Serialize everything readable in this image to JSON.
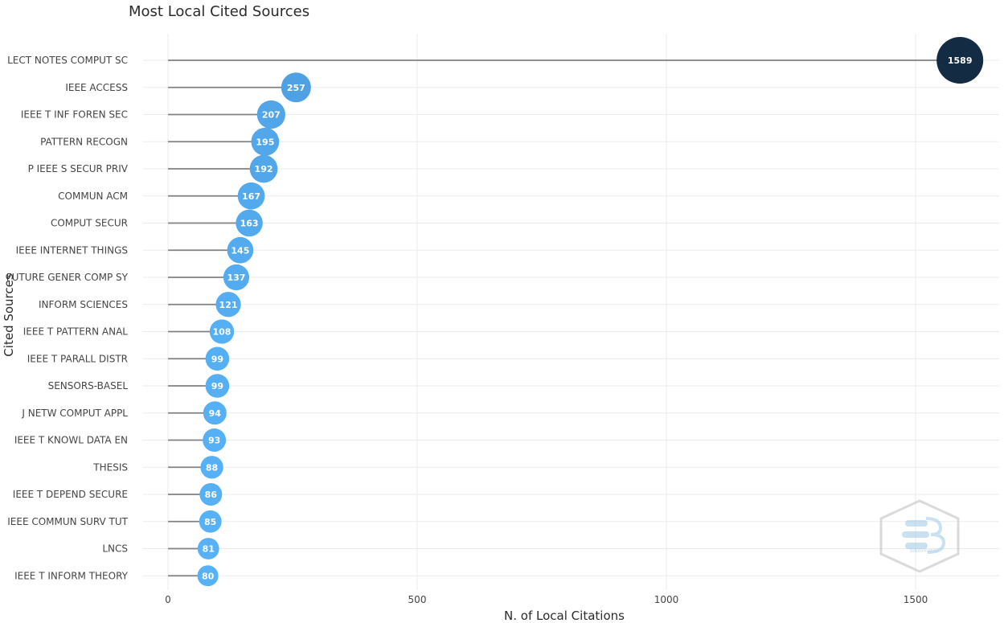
{
  "chart_data": {
    "type": "lollipop",
    "title": "Most Local Cited Sources",
    "xlabel": "N. of Local Citations",
    "ylabel": "Cited Sources",
    "xlim": [
      0,
      1680
    ],
    "xticks": [
      0,
      500,
      1000,
      1500
    ],
    "grid": true,
    "categories": [
      "LECT NOTES COMPUT SC",
      "IEEE ACCESS",
      "IEEE T INF FOREN SEC",
      "PATTERN RECOGN",
      "P IEEE S SECUR PRIV",
      "COMMUN ACM",
      "COMPUT SECUR",
      "IEEE INTERNET THINGS",
      "FUTURE GENER COMP SY",
      "INFORM SCIENCES",
      "IEEE T PATTERN ANAL",
      "IEEE T PARALL DISTR",
      "SENSORS-BASEL",
      "J NETW COMPUT APPL",
      "IEEE T KNOWL DATA EN",
      "THESIS",
      "IEEE T DEPEND SECURE",
      "IEEE COMMUN SURV TUT",
      "LNCS",
      "IEEE T INFORM THEORY"
    ],
    "values": [
      1589,
      257,
      207,
      195,
      192,
      167,
      163,
      145,
      137,
      121,
      108,
      99,
      99,
      94,
      93,
      88,
      86,
      85,
      81,
      80
    ],
    "colors": {
      "low": "#56B1F7",
      "high": "#132B43",
      "stem": "#808080",
      "grid": "#EBEBEB"
    }
  },
  "watermark": {
    "text": "bibliometrix"
  }
}
